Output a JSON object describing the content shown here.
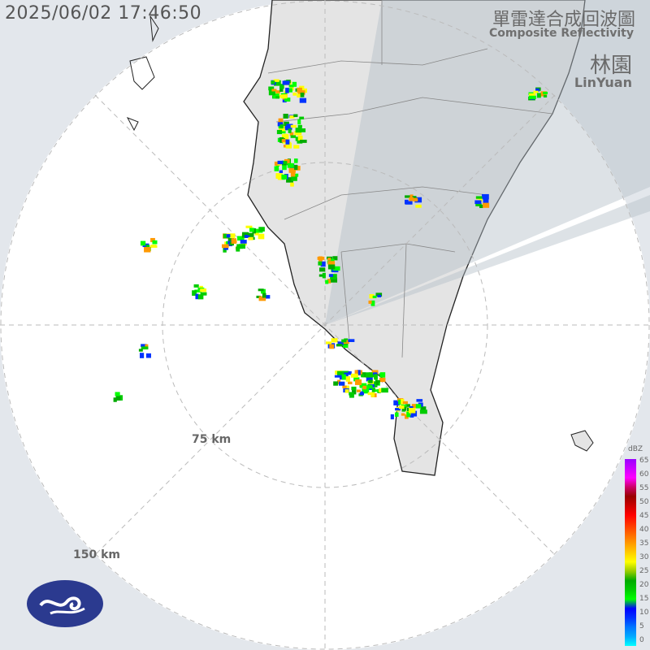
{
  "header": {
    "timestamp": "2025/06/02 17:46:50",
    "product_zh": "單雷達合成回波圖",
    "product_en": "Composite Reflectivity",
    "site_zh": "林園",
    "site_en": "LinYuan"
  },
  "range_rings": [
    {
      "label": "75 km"
    },
    {
      "label": "150 km"
    }
  ],
  "colorbar": {
    "unit": "dBZ",
    "ticks": [
      "65",
      "60",
      "55",
      "50",
      "45",
      "40",
      "35",
      "30",
      "25",
      "20",
      "15",
      "10",
      "5",
      "0"
    ],
    "colors": [
      "#9900ff",
      "#cc00ff",
      "#ff00ff",
      "#cc0066",
      "#990000",
      "#cc0000",
      "#ff0000",
      "#ff3300",
      "#ff6600",
      "#ff9900",
      "#ffcc00",
      "#ffff00",
      "#99cc00",
      "#00aa00",
      "#00cc00",
      "#00ff00",
      "#0000ff",
      "#0033ff",
      "#0077ff",
      "#00aaff",
      "#00ffff"
    ]
  },
  "logo": {
    "name": "cwa-logo-icon"
  }
}
